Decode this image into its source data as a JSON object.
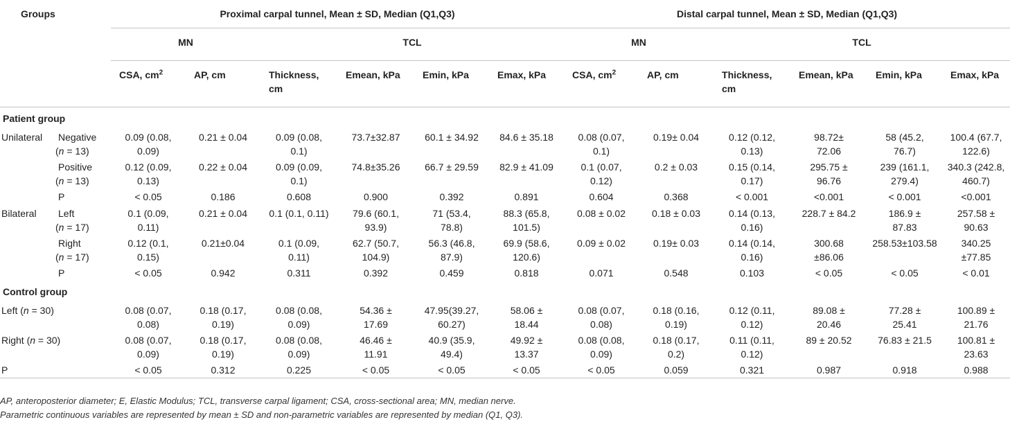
{
  "header": {
    "groups": "Groups",
    "proximal": "Proximal carpal tunnel, Mean ± SD, Median (Q1,Q3)",
    "distal": "Distal carpal tunnel, Mean ± SD, Median (Q1,Q3)",
    "mn": "MN",
    "tcl": "TCL",
    "csa_base": "CSA, cm",
    "csa_sup": "2",
    "ap": "AP, cm",
    "thickness_1": "Thickness,",
    "thickness_2": "cm",
    "emean": "Emean, kPa",
    "emin": "Emin, kPa",
    "emax": "Emax, kPa"
  },
  "sections": {
    "patient": "Patient group",
    "control": "Control group"
  },
  "rows": [
    {
      "g1": "Unilateral",
      "g2a": "Negative",
      "g2b": "(n = 13)",
      "cells": [
        [
          "0.09 (0.08,",
          "0.09)"
        ],
        [
          "0.21 ± 0.04"
        ],
        [
          "0.09 (0.08,",
          "0.1)"
        ],
        [
          "73.7±32.87"
        ],
        [
          "60.1 ± 34.92"
        ],
        [
          "84.6 ± 35.18"
        ],
        [
          "0.08 (0.07,",
          "0.1)"
        ],
        [
          "0.19± 0.04"
        ],
        [
          "0.12 (0.12,",
          "0.13)"
        ],
        [
          "98.72±",
          "72.06"
        ],
        [
          "58 (45.2,",
          "76.7)"
        ],
        [
          "100.4 (67.7,",
          "122.6)"
        ]
      ]
    },
    {
      "g1": "",
      "g2a": "Positive",
      "g2b": "(n = 13)",
      "cells": [
        [
          "0.12 (0.09,",
          "0.13)"
        ],
        [
          "0.22 ± 0.04"
        ],
        [
          "0.09 (0.09,",
          "0.1)"
        ],
        [
          "74.8±35.26"
        ],
        [
          "66.7 ± 29.59"
        ],
        [
          "82.9 ± 41.09"
        ],
        [
          "0.1 (0.07,",
          "0.12)"
        ],
        [
          "0.2 ± 0.03"
        ],
        [
          "0.15 (0.14,",
          "0.17)"
        ],
        [
          "295.75 ±",
          "96.76"
        ],
        [
          "239 (161.1,",
          "279.4)"
        ],
        [
          "340.3 (242.8,",
          "460.7)"
        ]
      ]
    },
    {
      "g1": "",
      "g2a": "P",
      "g2b": "",
      "cells": [
        [
          "< 0.05"
        ],
        [
          "0.186"
        ],
        [
          "0.608"
        ],
        [
          "0.900"
        ],
        [
          "0.392"
        ],
        [
          "0.891"
        ],
        [
          "0.604"
        ],
        [
          "0.368"
        ],
        [
          "< 0.001"
        ],
        [
          "<0.001"
        ],
        [
          "< 0.001"
        ],
        [
          "<0.001"
        ]
      ]
    },
    {
      "g1": "Bilateral",
      "g2a": "Left",
      "g2b": "(n = 17)",
      "cells": [
        [
          "0.1 (0.09,",
          "0.11)"
        ],
        [
          "0.21 ± 0.04"
        ],
        [
          "0.1 (0.1, 0.11)"
        ],
        [
          "79.6 (60.1,",
          "93.9)"
        ],
        [
          "71 (53.4,",
          "78.8)"
        ],
        [
          "88.3 (65.8,",
          "101.5)"
        ],
        [
          "0.08 ± 0.02"
        ],
        [
          "0.18 ± 0.03"
        ],
        [
          "0.14 (0.13,",
          "0.16)"
        ],
        [
          "228.7 ± 84.2"
        ],
        [
          "186.9 ±",
          "87.83"
        ],
        [
          "257.58 ±",
          "90.63"
        ]
      ]
    },
    {
      "g1": "",
      "g2a": "Right",
      "g2b": "(n = 17)",
      "cells": [
        [
          "0.12 (0.1,",
          "0.15)"
        ],
        [
          "0.21±0.04"
        ],
        [
          "0.1 (0.09,",
          "0.11)"
        ],
        [
          "62.7 (50.7,",
          "104.9)"
        ],
        [
          "56.3 (46.8,",
          "87.9)"
        ],
        [
          "69.9 (58.6,",
          "120.6)"
        ],
        [
          "0.09 ± 0.02"
        ],
        [
          "0.19± 0.03"
        ],
        [
          "0.14 (0.14,",
          "0.16)"
        ],
        [
          "300.68",
          "±86.06"
        ],
        [
          "258.53±103.58"
        ],
        [
          "340.25",
          "±77.85"
        ]
      ]
    },
    {
      "g1": "",
      "g2a": "P",
      "g2b": "",
      "cells": [
        [
          "< 0.05"
        ],
        [
          "0.942"
        ],
        [
          "0.311"
        ],
        [
          "0.392"
        ],
        [
          "0.459"
        ],
        [
          "0.818"
        ],
        [
          "0.071"
        ],
        [
          "0.548"
        ],
        [
          "0.103"
        ],
        [
          "< 0.05"
        ],
        [
          "< 0.05"
        ],
        [
          "< 0.01"
        ]
      ]
    }
  ],
  "control_rows": [
    {
      "label": "Left (n = 30)",
      "cells": [
        [
          "0.08 (0.07,",
          "0.08)"
        ],
        [
          "0.18 (0.17,",
          "0.19)"
        ],
        [
          "0.08 (0.08,",
          "0.09)"
        ],
        [
          "54.36 ±",
          "17.69"
        ],
        [
          "47.95(39.27,",
          "60.27)"
        ],
        [
          "58.06 ±",
          "18.44"
        ],
        [
          "0.08 (0.07,",
          "0.08)"
        ],
        [
          "0.18 (0.16,",
          "0.19)"
        ],
        [
          "0.12 (0.11,",
          "0.12)"
        ],
        [
          "89.08 ±",
          "20.46"
        ],
        [
          "77.28 ±",
          "25.41"
        ],
        [
          "100.89 ±",
          "21.76"
        ]
      ]
    },
    {
      "label": "Right (n = 30)",
      "cells": [
        [
          "0.08 (0.07,",
          "0.09)"
        ],
        [
          "0.18 (0.17,",
          "0.19)"
        ],
        [
          "0.08 (0.08,",
          "0.09)"
        ],
        [
          "46.46 ±",
          "11.91"
        ],
        [
          "40.9 (35.9,",
          "49.4)"
        ],
        [
          "49.92 ±",
          "13.37"
        ],
        [
          "0.08 (0.08,",
          "0.09)"
        ],
        [
          "0.18 (0.17,",
          "0.2)"
        ],
        [
          "0.11 (0.11,",
          "0.12)"
        ],
        [
          "89 ± 20.52"
        ],
        [
          "76.83 ± 21.5"
        ],
        [
          "100.81 ±",
          "23.63"
        ]
      ]
    },
    {
      "label": "P",
      "cells": [
        [
          "< 0.05"
        ],
        [
          "0.312"
        ],
        [
          "0.225"
        ],
        [
          "< 0.05"
        ],
        [
          "< 0.05"
        ],
        [
          "< 0.05"
        ],
        [
          "< 0.05"
        ],
        [
          "0.059"
        ],
        [
          "0.321"
        ],
        [
          "0.987"
        ],
        [
          "0.918"
        ],
        [
          "0.988"
        ]
      ]
    }
  ],
  "notes": {
    "line1": "AP, anteroposterior diameter; E, Elastic Modulus; TCL, transverse carpal ligament; CSA, cross-sectional area; MN, median nerve.",
    "line2": "Parametric continuous variables are represented by mean ± SD and non-parametric variables are represented by median (Q1, Q3)."
  }
}
